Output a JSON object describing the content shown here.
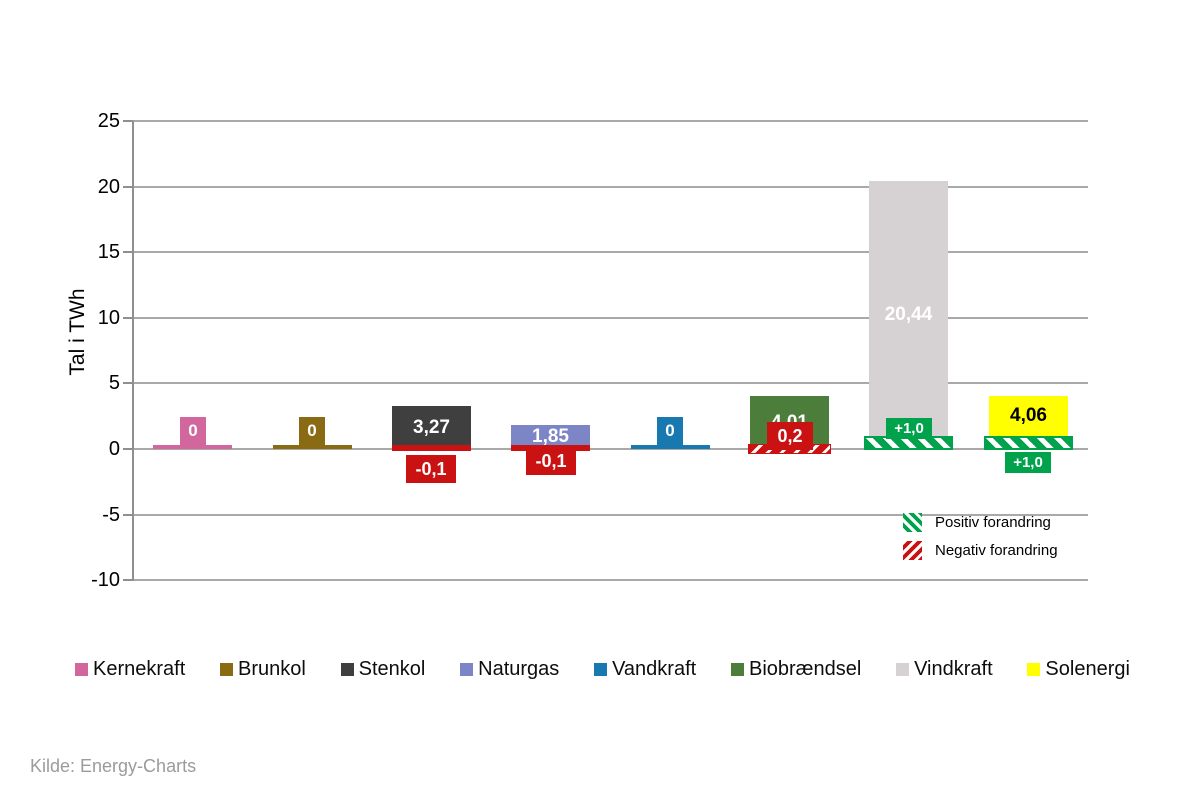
{
  "chart_data": {
    "type": "bar",
    "title": "",
    "ylabel": "Tal i TWh",
    "unit": "TWh",
    "ylim": [
      -10,
      25
    ],
    "yticks": [
      25,
      20,
      15,
      10,
      5,
      0,
      -5,
      -10
    ],
    "grid": "horizontal",
    "categories": [
      "Kernekraft",
      "Brunkol",
      "Stenkol",
      "Naturgas",
      "Vandkraft",
      "Biobrændsel",
      "Vindkraft",
      "Solenergi"
    ],
    "values": [
      0,
      0,
      3.27,
      1.85,
      0,
      4.01,
      20.44,
      4.06
    ],
    "bars": [
      {
        "id": "kernekraft",
        "name": "Kernekraft",
        "color": "#d2679e",
        "value": 0,
        "value_label": "0",
        "label_placement": "box-above",
        "value_text_color": "#ffffff",
        "solid_bottom": 0,
        "change": null
      },
      {
        "id": "brunkol",
        "name": "Brunkol",
        "color": "#8a6a12",
        "value": 0,
        "value_label": "0",
        "label_placement": "box-above",
        "value_text_color": "#ffffff",
        "solid_bottom": 0,
        "change": null
      },
      {
        "id": "stenkol",
        "name": "Stenkol",
        "color": "#3f3f3f",
        "value": 3.27,
        "value_label": "3,27",
        "label_placement": "inside",
        "value_text_color": "#ffffff",
        "solid_bottom": 0,
        "change": {
          "value": -0.1,
          "label": "-0,1",
          "type": "negative",
          "hatched": false,
          "label_position": "below"
        }
      },
      {
        "id": "naturgas",
        "name": "Naturgas",
        "color": "#7c85c6",
        "value": 1.85,
        "value_label": "1,85",
        "label_placement": "inside",
        "value_text_color": "#ffffff",
        "solid_bottom": 0,
        "change": {
          "value": -0.1,
          "label": "-0,1",
          "type": "negative",
          "hatched": false,
          "label_position": "at-zero"
        }
      },
      {
        "id": "vandkraft",
        "name": "Vandkraft",
        "color": "#1878b0",
        "value": 0,
        "value_label": "0",
        "label_placement": "box-above",
        "value_text_color": "#ffffff",
        "solid_bottom": 0,
        "change": null
      },
      {
        "id": "biobraendsel",
        "name": "Biobrændsel",
        "color": "#4d7d3a",
        "value": 4.01,
        "value_label": "4,01",
        "label_placement": "inside",
        "value_text_color": "#ffffff",
        "solid_bottom": 0,
        "change": {
          "value": -0.2,
          "label": "0,2",
          "type": "negative",
          "hatched": true,
          "label_position": "inside-bottom"
        }
      },
      {
        "id": "vindkraft",
        "name": "Vindkraft",
        "color": "#d6d1d3",
        "value": 20.44,
        "value_label": "20,44",
        "label_placement": "inside",
        "value_text_color": "#ffffff",
        "solid_bottom": 0,
        "change": {
          "value": 1.0,
          "label": "+1,0",
          "type": "positive",
          "hatched": true,
          "label_position": "above-strip"
        }
      },
      {
        "id": "solenergi",
        "name": "Solenergi",
        "color": "#ffff00",
        "value": 4.06,
        "value_label": "4,06",
        "label_placement": "inside",
        "value_text_color": "#000000",
        "solid_bottom": 1.0,
        "change": {
          "value": 1.0,
          "label": "+1,0",
          "type": "positive",
          "hatched": true,
          "label_position": "below"
        }
      }
    ],
    "change_legend": [
      {
        "label": "Positiv forandring",
        "type": "positive"
      },
      {
        "label": "Negativ forandring",
        "type": "negative"
      }
    ],
    "colors": {
      "positive": "#00a24c",
      "negative": "#cb1212",
      "gridline": "#a9a9a9",
      "source_text": "#9b9b9b"
    },
    "legend_position": "bottom",
    "source": "Kilde: Energy-Charts"
  }
}
